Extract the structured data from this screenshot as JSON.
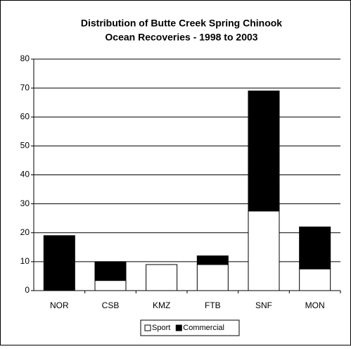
{
  "chart_data": {
    "type": "stacked_bar",
    "title": [
      "Distribution of Butte Creek Spring Chinook",
      "Ocean Recoveries - 1998 to 2003"
    ],
    "categories": [
      "NOR",
      "CSB",
      "KMZ",
      "FTB",
      "SNF",
      "MON"
    ],
    "series": [
      {
        "name": "Sport",
        "color": "#ffffff",
        "values": [
          0,
          3.5,
          9,
          9,
          27.5,
          7.5
        ]
      },
      {
        "name": "Commercial",
        "color": "#000000",
        "values": [
          19,
          6.5,
          0,
          3,
          41.5,
          14.5
        ]
      }
    ],
    "ylim": [
      0,
      80
    ],
    "yticks": [
      0,
      10,
      20,
      30,
      40,
      50,
      60,
      70,
      80
    ],
    "grid": true,
    "legend": "bottom"
  }
}
